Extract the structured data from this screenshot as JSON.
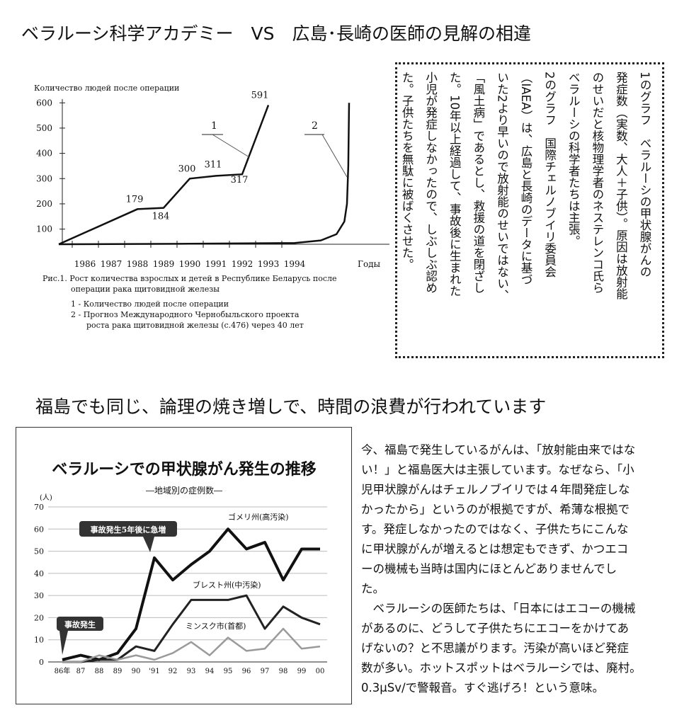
{
  "title": "ベラルーシ科学アカデミー　VS　広島･長崎の医師の見解の相違",
  "section_title": "福島でも同じ、論理の焼き増しで、時間の浪費が行われています",
  "note_box": {
    "lines": [
      "1のグラフ　ベラルーシの甲状腺がんの",
      "発症数（実数、大人＋子供）。原因は放射能",
      "のせいだと核物理学者のネステレンコ氏ら",
      "ベラルーシの科学者たちは主張。",
      "2のグラフ　国際チェルノブイリ委員会",
      "（IAEA）は、広島と長崎のデータに基づ",
      "いた2より早いので放射能のせいではない、",
      "「風土病」であるとし、救援の道を閉ざし",
      "た。10年以上経過して、事故後に生まれた",
      "小児が発症しなかったので、しぶしぶ認め",
      "た。子供たちを無駄に被ばくさせた。"
    ]
  },
  "body_text": {
    "lines": [
      "今、福島で発生しているがんは、「放射能由来ではな",
      "い！」と福島医大は主張しています。なぜなら、「小",
      "児甲状腺がんはチェルノブイリでは４年間発症しな",
      "かったから」というのが根拠ですが、希薄な根拠で",
      "す。発症しなかったのではなく、子供たちにこんな",
      "に甲状腺がんが増えるとは想定もできず、かつエコ",
      "ーの機械も当時は国内にほとんどありませんでし",
      "た。",
      "　ベラルーシの医師たちは、「日本にはエコーの機械",
      "があるのに、どうして子供たちにエコーをかけてあ",
      "げないの？と不思議がります。汚染が高いほど発症",
      "数が多い。ホットスポットはベラルーシでは、廃村。",
      "0.3μSv/で警報音。すぐ逃げろ！という意味。"
    ]
  },
  "chart_data": [
    {
      "type": "line",
      "y_label": "Количество людей после операции",
      "x_label": "Годы",
      "caption": [
        "Рис.1. Рост количества взрослых и детей в Республике Беларусь после",
        "операции рака щитовидной железы",
        "1 - Количество людей после операции",
        "2 - Прогноз Международного Чернобыльского проекта",
        "роста рака щитовидной железы (с.476) через 40 лет"
      ],
      "xlim": [
        1985,
        1997
      ],
      "xticks": [
        1986,
        1987,
        1988,
        1989,
        1990,
        1991,
        1992,
        1993,
        1994
      ],
      "ylim": [
        40,
        640
      ],
      "yticks": [
        100,
        200,
        300,
        400,
        500,
        600
      ],
      "series": [
        {
          "name": "1",
          "color": "#111111",
          "x": [
            1985,
            1988,
            1989,
            1990,
            1991,
            1992,
            1993
          ],
          "values": [
            40,
            179,
            184,
            300,
            311,
            317,
            591
          ]
        },
        {
          "name": "2",
          "color": "#111111",
          "x": [
            1985,
            1990,
            1994,
            1995,
            1995.6,
            1995.9,
            1996,
            1996.05,
            1996.08
          ],
          "values": [
            40,
            42,
            45,
            55,
            80,
            130,
            200,
            350,
            600
          ]
        }
      ]
    },
    {
      "type": "line",
      "title": "ベラルーシでの甲状腺がん発生の推移",
      "subtitle": "―地域別の症例数―",
      "y_label": "(人)",
      "categories": [
        "86年",
        "87",
        "88",
        "89",
        "90",
        "'91",
        "92",
        "93",
        "94",
        "95",
        "96",
        "97",
        "98",
        "99",
        "00"
      ],
      "ylim": [
        0,
        70
      ],
      "yticks": [
        0,
        10,
        20,
        30,
        40,
        50,
        60,
        70
      ],
      "grid": true,
      "annotations": [
        "事故発生5年後に急増",
        "事故発生"
      ],
      "series": [
        {
          "name": "ゴメリ州(高汚染)",
          "color": "#111111",
          "values": [
            1,
            3,
            1,
            4,
            15,
            47,
            37,
            44,
            50,
            60,
            51,
            54,
            37,
            51,
            51
          ]
        },
        {
          "name": "ブレスト州(中汚染)",
          "color": "#222222",
          "values": [
            0,
            0,
            1,
            1,
            7,
            5,
            17,
            28,
            28,
            28,
            30,
            15,
            25,
            20,
            17
          ]
        },
        {
          "name": "ミンスク市(首都)",
          "color": "#9a9a9a",
          "values": [
            0,
            0,
            3,
            1,
            3,
            1,
            4,
            9,
            3,
            11,
            5,
            6,
            15,
            6,
            7
          ]
        }
      ]
    }
  ]
}
